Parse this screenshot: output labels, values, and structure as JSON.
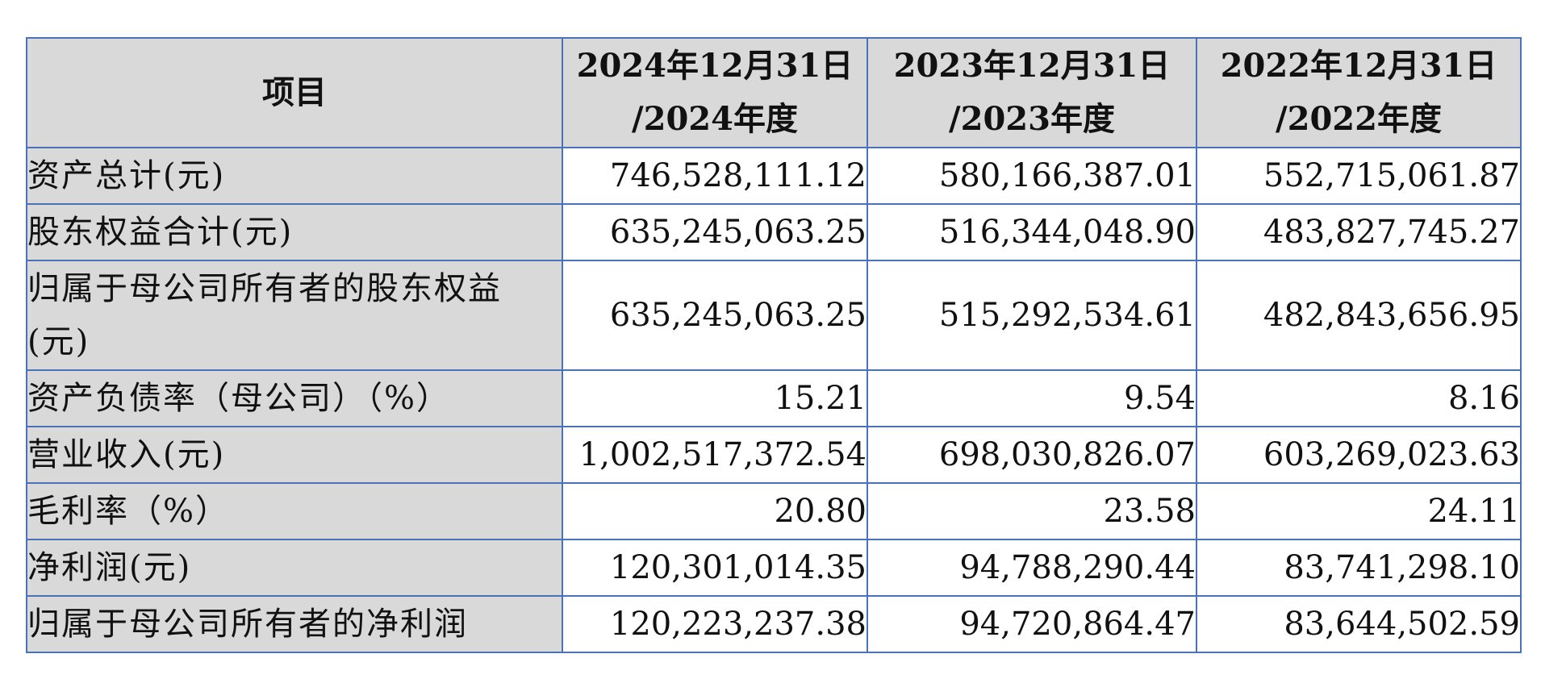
{
  "table": {
    "header": {
      "item": "项目",
      "columns": [
        {
          "line1": "2024年12月31日",
          "line2": "/2024年度"
        },
        {
          "line1": "2023年12月31日",
          "line2": "/2023年度"
        },
        {
          "line1": "2022年12月31日",
          "line2": "/2022年度"
        }
      ]
    },
    "rows": [
      {
        "label": "资产总计(元)",
        "values": [
          "746,528,111.12",
          "580,166,387.01",
          "552,715,061.87"
        ]
      },
      {
        "label": "股东权益合计(元)",
        "values": [
          "635,245,063.25",
          "516,344,048.90",
          "483,827,745.27"
        ]
      },
      {
        "label": "归属于母公司所有者的股东权益(元)",
        "values": [
          "635,245,063.25",
          "515,292,534.61",
          "482,843,656.95"
        ]
      },
      {
        "label": "资产负债率（母公司）（%）",
        "values": [
          "15.21",
          "9.54",
          "8.16"
        ]
      },
      {
        "label": "营业收入(元)",
        "values": [
          "1,002,517,372.54",
          "698,030,826.07",
          "603,269,023.63"
        ]
      },
      {
        "label": "毛利率（%）",
        "values": [
          "20.80",
          "23.58",
          "24.11"
        ]
      },
      {
        "label": "净利润(元)",
        "values": [
          "120,301,014.35",
          "94,788,290.44",
          "83,741,298.10"
        ]
      },
      {
        "label": "归属于母公司所有者的净利润",
        "values": [
          "120,223,237.38",
          "94,720,864.47",
          "83,644,502.59"
        ]
      }
    ]
  },
  "colors": {
    "border": "#4a72b8",
    "label_background": "#d9d9d9",
    "cell_background": "#ffffff"
  }
}
